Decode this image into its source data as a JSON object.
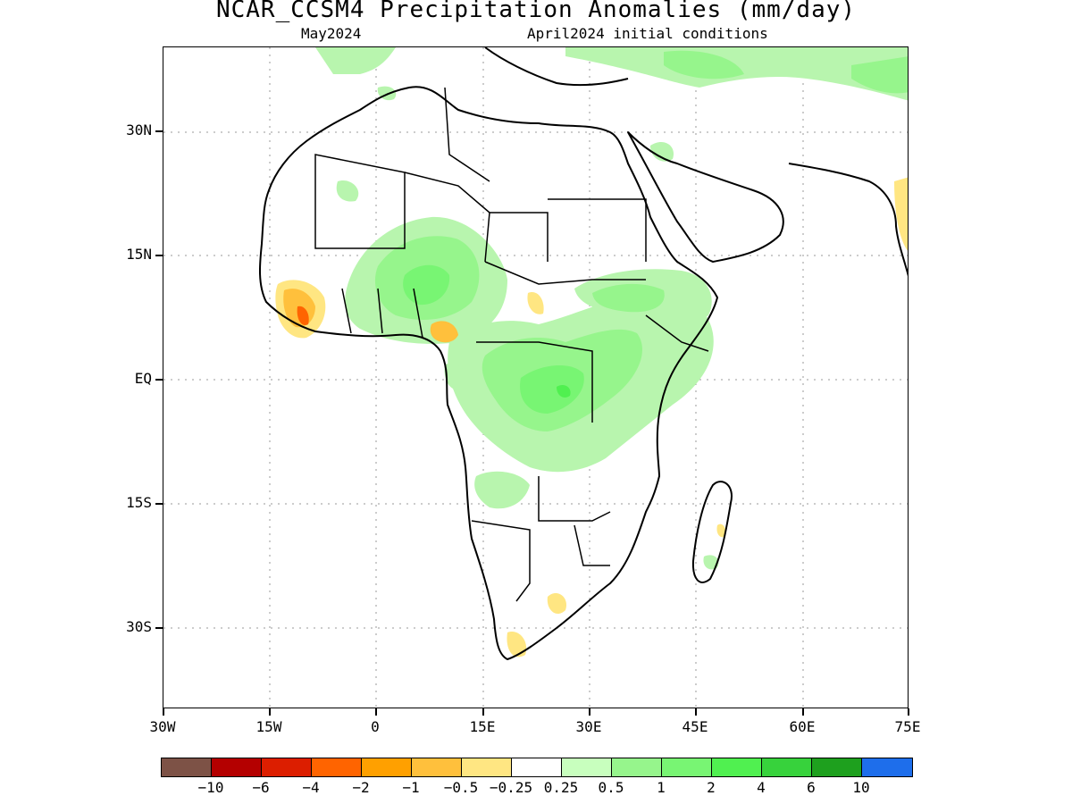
{
  "title": "NCAR_CCSM4 Precipitation Anomalies (mm/day)",
  "subtitle_left": "May2024",
  "subtitle_right": "April2024 initial conditions",
  "map_extent": {
    "lon": [
      -30,
      75
    ],
    "lat": [
      -45,
      38
    ]
  },
  "lat_ticks": [
    "30N",
    "15N",
    "EQ",
    "15S",
    "30S"
  ],
  "lon_ticks": [
    "30W",
    "15W",
    "0",
    "15E",
    "30E",
    "45E",
    "60E",
    "75E"
  ],
  "colorbar": {
    "colors": [
      "#7d5246",
      "#b40000",
      "#dc1e00",
      "#ff6400",
      "#ffa000",
      "#ffc03c",
      "#ffe682",
      "#ffffff",
      "#c8ffbe",
      "#96f58c",
      "#78f573",
      "#50f050",
      "#37d23c",
      "#1ea01e",
      "#1e6eeb"
    ],
    "labels": [
      "-10",
      "-6",
      "-4",
      "-2",
      "-1",
      "-0.5",
      "-0.25",
      "0.25",
      "0.5",
      "1",
      "2",
      "4",
      "6",
      "10"
    ]
  }
}
